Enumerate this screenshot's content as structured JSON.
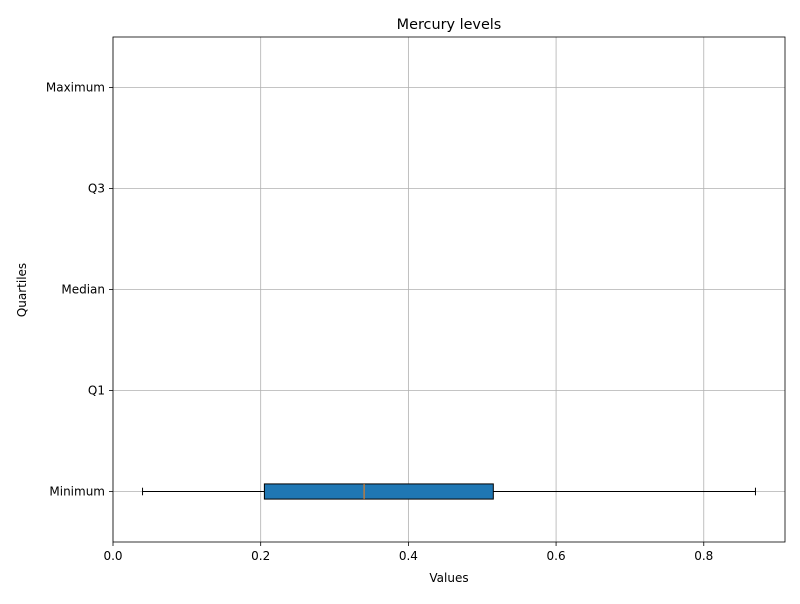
{
  "chart_data": {
    "type": "box",
    "title": "Mercury levels",
    "xlabel": "Values",
    "ylabel": "Quartiles",
    "xlim": [
      0.0,
      0.91
    ],
    "x_ticks": [
      0.0,
      0.2,
      0.4,
      0.6,
      0.8
    ],
    "x_tick_labels": [
      "0.0",
      "0.2",
      "0.4",
      "0.6",
      "0.8"
    ],
    "y_categories": [
      "Minimum",
      "Q1",
      "Median",
      "Q3",
      "Maximum"
    ],
    "grid": true,
    "box": {
      "category": "Minimum",
      "whisker_low": 0.04,
      "q1": 0.205,
      "median": 0.34,
      "q3": 0.515,
      "whisker_high": 0.87,
      "box_color": "#1f77b4",
      "median_color": "#ff7f0e"
    }
  }
}
